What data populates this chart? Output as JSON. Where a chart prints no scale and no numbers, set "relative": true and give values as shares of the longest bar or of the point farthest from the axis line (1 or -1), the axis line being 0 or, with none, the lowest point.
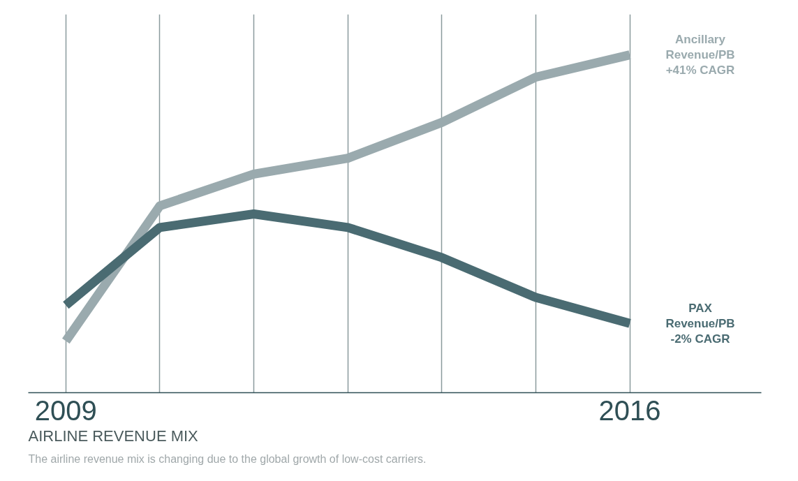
{
  "chart_data": {
    "type": "line",
    "title": "AIRLINE REVENUE MIX",
    "subtitle": "The airline revenue mix is changing due to the global growth of low-cost carriers.",
    "relative": true,
    "grid": "x",
    "categories": [
      "2009",
      null,
      null,
      null,
      null,
      null,
      "2016"
    ],
    "series": [
      {
        "name": "Ancillary Revenue/PB",
        "color": "#9aaaae",
        "values": [
          0.153,
          0.553,
          0.647,
          0.694,
          0.8,
          0.934,
          1.0
        ]
      },
      {
        "name": "PAX Revenue/PB",
        "color": "#4a6b72",
        "values": [
          0.259,
          0.489,
          0.529,
          0.489,
          0.4,
          0.282,
          0.205
        ]
      }
    ],
    "annotations": [
      "+41% CAGR",
      "-2% CAGR"
    ]
  }
}
